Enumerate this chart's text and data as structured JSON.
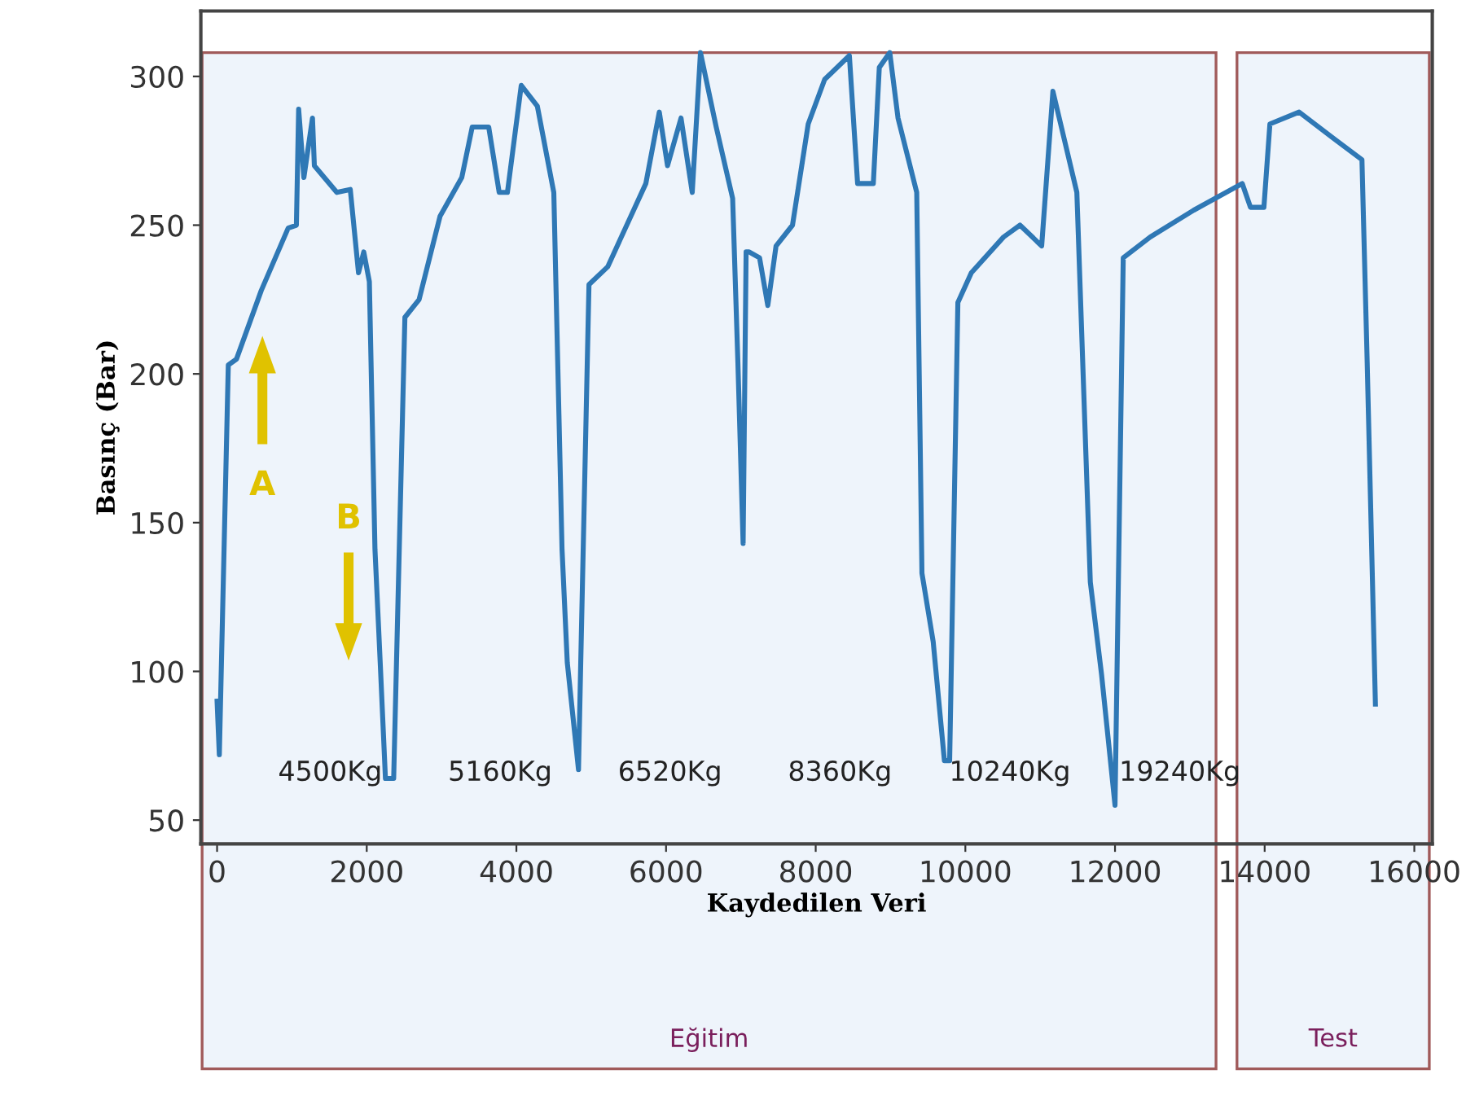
{
  "chart_data": {
    "type": "line",
    "xlabel": "Kaydedilen Veri",
    "ylabel": "Basınç (Bar)",
    "xlim": [
      -217,
      16240
    ],
    "ylim": [
      42,
      322
    ],
    "xticks": [
      0,
      2000,
      4000,
      6000,
      8000,
      10000,
      12000,
      14000,
      16000
    ],
    "yticks": [
      50,
      100,
      150,
      200,
      250,
      300
    ],
    "grid": false,
    "legend": false,
    "marker": "none",
    "line_style": "solid",
    "series": [
      {
        "color": "#2f78b5",
        "x": [
          0,
          30,
          150,
          260,
          590,
          950,
          1060,
          1090,
          1160,
          1275,
          1300,
          1600,
          1780,
          1890,
          1960,
          2035,
          2110,
          2180,
          2250,
          2360,
          2510,
          2700,
          2980,
          3270,
          3410,
          3630,
          3770,
          3880,
          4065,
          4280,
          4500,
          4610,
          4680,
          4830,
          4860,
          4970,
          5220,
          5730,
          5910,
          6020,
          6200,
          6350,
          6460,
          6670,
          6890,
          6960,
          7030,
          7070,
          7110,
          7250,
          7360,
          7470,
          7690,
          7900,
          8120,
          8450,
          8560,
          8770,
          8850,
          8990,
          9100,
          9350,
          9420,
          9570,
          9720,
          9790,
          9900,
          10080,
          10510,
          10730,
          11020,
          11170,
          11490,
          11670,
          11820,
          12000,
          12110,
          12470,
          13050,
          13700,
          13810,
          13990,
          14070,
          14460,
          14930,
          15300,
          15370,
          15480
        ],
        "values": [
          90,
          72,
          203,
          205,
          228,
          249,
          250,
          289,
          266,
          286,
          270,
          261,
          262,
          234,
          241,
          231,
          141,
          103,
          64,
          64,
          219,
          225,
          253,
          266,
          283,
          283,
          261,
          261,
          297,
          290,
          261,
          141,
          103,
          67,
          103,
          230,
          236,
          264,
          288,
          270,
          286,
          261,
          308,
          283,
          259,
          204,
          143,
          241,
          241,
          239,
          223,
          243,
          250,
          284,
          299,
          307,
          264,
          264,
          303,
          308,
          286,
          261,
          133,
          110,
          70,
          70,
          224,
          234,
          246,
          250,
          243,
          295,
          261,
          130,
          99,
          55,
          239,
          246,
          255,
          264,
          256,
          256,
          284,
          288,
          279,
          272,
          204,
          89
        ]
      }
    ],
    "bands": [
      {
        "axis": "x",
        "from": -200,
        "to": 13350,
        "label": "Eğitim",
        "color": "#eef4fb"
      },
      {
        "axis": "x",
        "from": 13630,
        "to": 16200,
        "label": "Test",
        "color": "#eef4fb"
      }
    ],
    "annotations": [
      "4500Kg",
      "5160Kg",
      "6520Kg",
      "8360Kg",
      "10240Kg",
      "19240Kg",
      "A",
      "B"
    ]
  }
}
